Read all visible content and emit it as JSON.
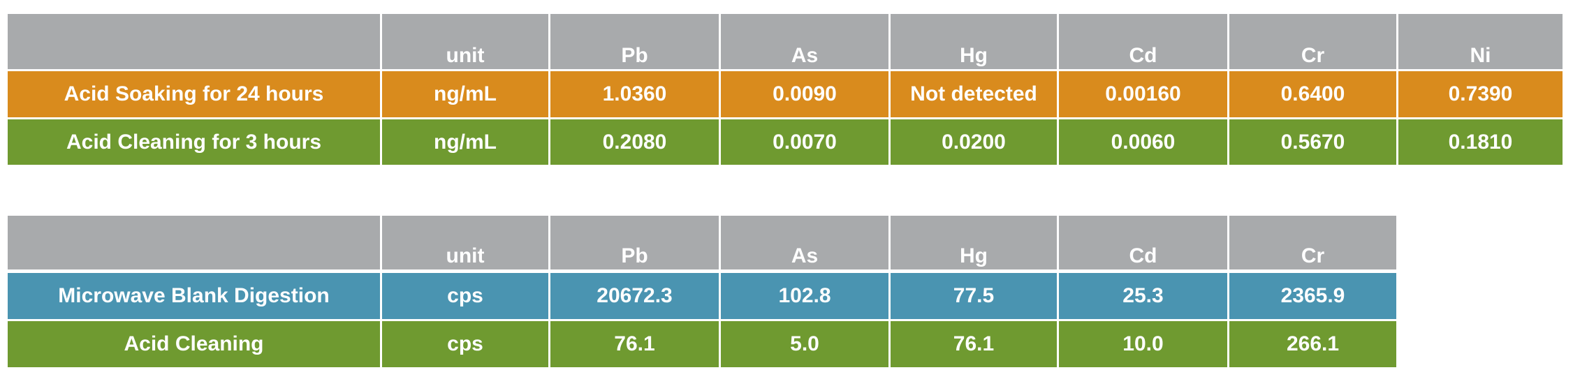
{
  "tables": [
    {
      "columns": [
        "unit",
        "Pb",
        "As",
        "Hg",
        "Cd",
        "Cr",
        "Ni"
      ],
      "rows": [
        [
          "Acid Soaking for 24 hours",
          "ng/mL",
          "1.0360",
          "0.0090",
          "Not detected",
          "0.00160",
          "0.6400",
          "0.7390"
        ],
        [
          "Acid Cleaning for 3 hours",
          "ng/mL",
          "0.2080",
          "0.0070",
          "0.0200",
          "0.0060",
          "0.5670",
          "0.1810"
        ]
      ]
    },
    {
      "columns": [
        "unit",
        "Pb",
        "As",
        "Hg",
        "Cd",
        "Cr"
      ],
      "rows": [
        [
          "Microwave Blank Digestion",
          "cps",
          "20672.3",
          "102.8",
          "77.5",
          "25.3",
          "2365.9"
        ],
        [
          "Acid Cleaning",
          "cps",
          "76.1",
          "5.0",
          "76.1",
          "10.0",
          "266.1"
        ]
      ]
    }
  ]
}
